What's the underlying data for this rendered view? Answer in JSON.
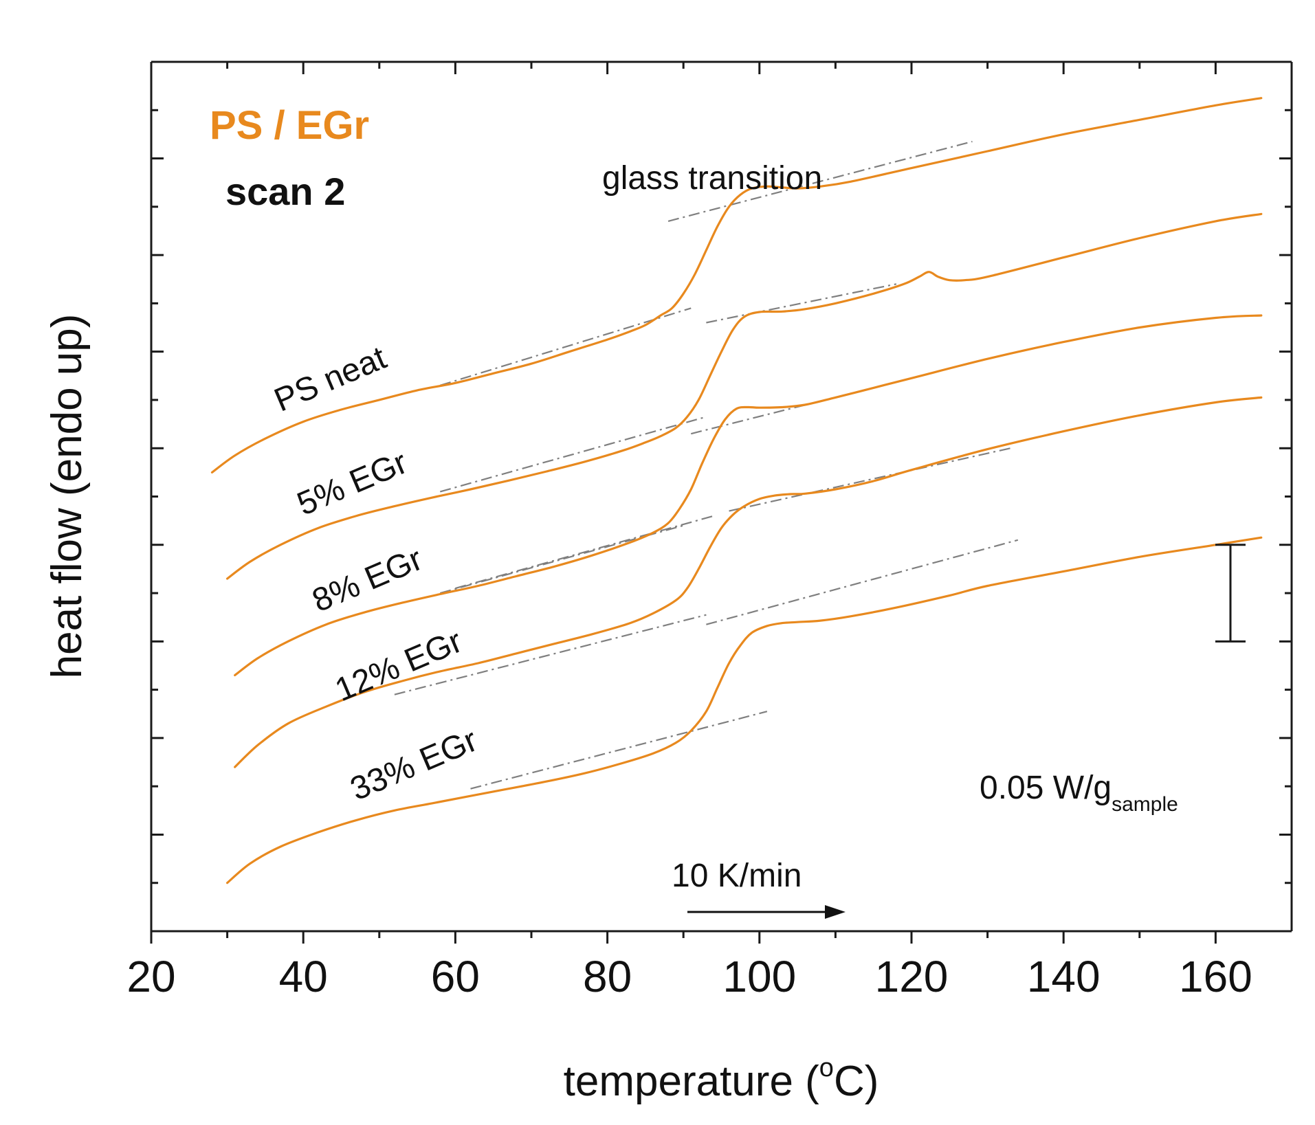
{
  "chart_data": {
    "type": "line",
    "title": "PS / EGr",
    "subtitle": "scan 2",
    "xlabel_main": "temperature (",
    "xlabel_sup": "o",
    "xlabel_end": "C)",
    "ylabel": "heat flow (endo up)",
    "xlim": [
      20,
      170
    ],
    "ylim": [
      0,
      18
    ],
    "x_ticks": [
      20,
      40,
      60,
      80,
      100,
      120,
      140,
      160
    ],
    "y_ticks_unlabeled": [
      1,
      2,
      3,
      4,
      5,
      6,
      7,
      8,
      9,
      10,
      11,
      12,
      13,
      14,
      15,
      16,
      17
    ],
    "annotation_glass": "glass transition",
    "annotation_rate": "10 K/min",
    "scale_bar_label": "0.05 W/g",
    "scale_bar_sub": "sample",
    "scale_bar_value": 2,
    "curve_color": "#e8891e",
    "baseline_color": "#7f7f7f",
    "series": [
      {
        "name": "PS neat",
        "x": [
          28,
          31,
          35,
          40,
          45,
          50,
          55,
          60,
          65,
          70,
          75,
          80,
          83,
          85,
          87,
          88.5,
          90,
          91.5,
          93,
          94.5,
          96,
          97.5,
          99,
          101,
          103,
          105,
          108,
          112,
          120,
          130,
          140,
          150,
          160,
          166
        ],
        "y": [
          9.5,
          9.85,
          10.2,
          10.55,
          10.8,
          11.0,
          11.2,
          11.35,
          11.55,
          11.75,
          12.0,
          12.25,
          12.42,
          12.55,
          12.75,
          12.9,
          13.2,
          13.6,
          14.1,
          14.6,
          15.0,
          15.25,
          15.38,
          15.42,
          15.4,
          15.38,
          15.42,
          15.52,
          15.8,
          16.15,
          16.5,
          16.8,
          17.1,
          17.25
        ],
        "label_pos": [
          37,
          10.75
        ]
      },
      {
        "name": "5% EGr",
        "x": [
          30,
          33,
          37,
          42,
          47,
          52,
          57,
          62,
          67,
          72,
          77,
          82,
          85,
          87,
          89,
          90.5,
          92,
          93.5,
          95,
          96.5,
          98,
          100,
          103,
          106,
          110,
          115,
          119,
          121,
          122.3,
          123.5,
          125,
          127,
          130,
          140,
          150,
          160,
          166
        ],
        "y": [
          7.3,
          7.65,
          8.0,
          8.35,
          8.6,
          8.8,
          8.98,
          9.15,
          9.33,
          9.52,
          9.72,
          9.95,
          10.12,
          10.25,
          10.42,
          10.65,
          11.0,
          11.5,
          12.0,
          12.45,
          12.72,
          12.82,
          12.83,
          12.88,
          13.0,
          13.2,
          13.4,
          13.55,
          13.65,
          13.55,
          13.48,
          13.48,
          13.55,
          13.95,
          14.35,
          14.7,
          14.85
        ],
        "label_pos": [
          40,
          8.6
        ]
      },
      {
        "name": "8% EGr",
        "x": [
          31,
          34,
          38,
          43,
          48,
          53,
          58,
          63,
          68,
          73,
          78,
          83,
          86,
          88,
          89.5,
          91,
          92.5,
          94,
          95.5,
          97,
          98.5,
          100,
          103,
          106,
          110,
          115,
          120,
          130,
          140,
          150,
          160,
          166
        ],
        "y": [
          5.3,
          5.65,
          6.0,
          6.35,
          6.6,
          6.8,
          6.98,
          7.15,
          7.35,
          7.55,
          7.78,
          8.05,
          8.25,
          8.45,
          8.75,
          9.15,
          9.7,
          10.2,
          10.6,
          10.82,
          10.85,
          10.84,
          10.85,
          10.9,
          11.05,
          11.25,
          11.45,
          11.85,
          12.2,
          12.5,
          12.7,
          12.75
        ],
        "label_pos": [
          42,
          6.6
        ]
      },
      {
        "name": "12% EGr",
        "x": [
          31,
          34,
          38,
          43,
          48,
          53,
          58,
          63,
          68,
          73,
          78,
          83,
          86,
          89,
          90.5,
          92,
          93.5,
          95,
          96.5,
          98,
          100,
          102,
          104,
          106,
          110,
          115,
          120,
          130,
          140,
          150,
          160,
          166
        ],
        "y": [
          3.4,
          3.85,
          4.3,
          4.65,
          4.95,
          5.18,
          5.38,
          5.55,
          5.75,
          5.95,
          6.15,
          6.38,
          6.58,
          6.85,
          7.1,
          7.5,
          7.95,
          8.35,
          8.62,
          8.8,
          8.95,
          9.02,
          9.05,
          9.06,
          9.15,
          9.32,
          9.55,
          9.98,
          10.35,
          10.68,
          10.95,
          11.05
        ],
        "label_pos": [
          45,
          4.75
        ]
      },
      {
        "name": "33% EGr",
        "x": [
          30,
          33,
          37,
          42,
          47,
          52,
          57,
          62,
          67,
          72,
          77,
          82,
          86,
          89,
          91,
          93,
          94.5,
          96,
          97.5,
          99,
          101,
          103,
          105,
          108,
          112,
          118,
          125,
          130,
          140,
          150,
          160,
          166
        ],
        "y": [
          1.0,
          1.4,
          1.75,
          2.05,
          2.3,
          2.5,
          2.65,
          2.8,
          2.95,
          3.1,
          3.27,
          3.48,
          3.68,
          3.9,
          4.15,
          4.55,
          5.05,
          5.55,
          5.92,
          6.18,
          6.32,
          6.38,
          6.4,
          6.43,
          6.52,
          6.7,
          6.95,
          7.15,
          7.45,
          7.75,
          8.0,
          8.15
        ],
        "label_pos": [
          47,
          2.7
        ]
      }
    ],
    "baselines": [
      {
        "x": [
          58,
          91
        ],
        "y": [
          11.3,
          12.9
        ]
      },
      {
        "x": [
          88,
          128
        ],
        "y": [
          14.7,
          16.35
        ]
      },
      {
        "x": [
          58,
          93
        ],
        "y": [
          9.1,
          10.65
        ]
      },
      {
        "x": [
          93,
          118
        ],
        "y": [
          12.6,
          13.4
        ]
      },
      {
        "x": [
          60,
          94
        ],
        "y": [
          7.1,
          8.6
        ]
      },
      {
        "x": [
          91,
          130
        ],
        "y": [
          10.3,
          11.85
        ]
      },
      {
        "x": [
          58,
          90
        ],
        "y": [
          7.0,
          8.4
        ]
      },
      {
        "x": [
          96,
          133
        ],
        "y": [
          8.7,
          10.0
        ]
      },
      {
        "x": [
          52,
          93
        ],
        "y": [
          4.9,
          6.55
        ]
      },
      {
        "x": [
          93,
          134
        ],
        "y": [
          6.35,
          8.1
        ]
      },
      {
        "x": [
          62,
          101
        ],
        "y": [
          2.95,
          4.55
        ]
      }
    ]
  }
}
